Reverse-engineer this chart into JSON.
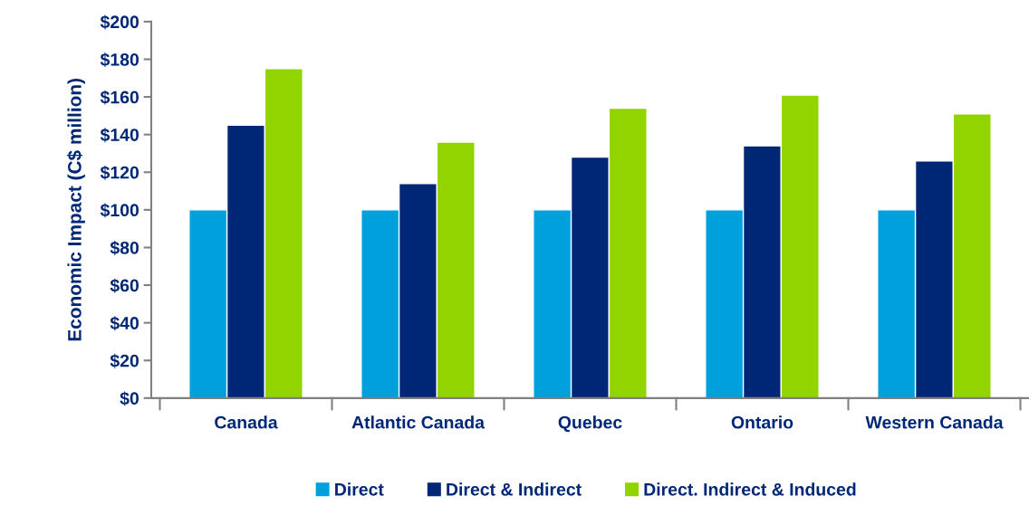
{
  "chart_data": {
    "type": "bar",
    "ylabel": "Economic Impact (C$ million)",
    "categories": [
      "Canada",
      "Atlantic Canada",
      "Quebec",
      "Ontario",
      "Western Canada"
    ],
    "series": [
      {
        "name": "Direct",
        "color": "#00a0dc",
        "values": [
          100,
          100,
          100,
          100,
          100
        ]
      },
      {
        "name": "Direct & Indirect",
        "color": "#002776",
        "values": [
          145,
          114,
          128,
          134,
          126
        ]
      },
      {
        "name": "Direct. Indirect & Induced",
        "color": "#92d400",
        "values": [
          175,
          136,
          154,
          161,
          151
        ]
      }
    ],
    "ylim": [
      0,
      200
    ],
    "yticks": [
      {
        "value": 0,
        "label": "$0"
      },
      {
        "value": 20,
        "label": "$20"
      },
      {
        "value": 40,
        "label": "$40"
      },
      {
        "value": 60,
        "label": "$60"
      },
      {
        "value": 80,
        "label": "$80"
      },
      {
        "value": 100,
        "label": "$100"
      },
      {
        "value": 120,
        "label": "$120"
      },
      {
        "value": 140,
        "label": "$140"
      },
      {
        "value": 160,
        "label": "$160"
      },
      {
        "value": 180,
        "label": "$180"
      },
      {
        "value": 200,
        "label": "$200"
      }
    ],
    "grid": false,
    "legend": "bottom"
  }
}
